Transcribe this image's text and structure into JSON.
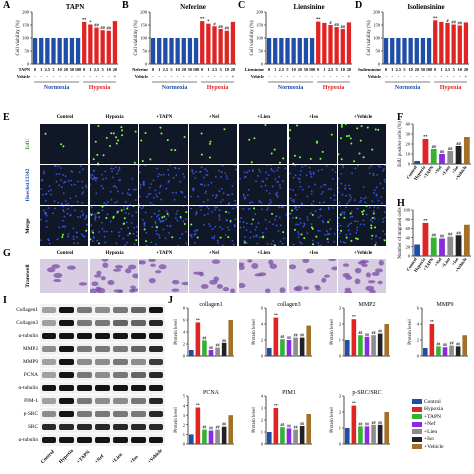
{
  "panels": {
    "A": "A",
    "B": "B",
    "C": "C",
    "D": "D",
    "E": "E",
    "F": "F",
    "G": "G",
    "H": "H",
    "I": "I",
    "J": "J"
  },
  "colors": {
    "normoxia_bar": "#1f4ea8",
    "hypoxia_bar": "#e02424",
    "control": "#1f4ea8",
    "hypoxia": "#e02424",
    "tapn": "#34b233",
    "nef": "#8a2be2",
    "lien": "#8c8c8c",
    "iso": "#222222",
    "vehicle": "#a3702a",
    "normoxia_text": "#1f4ea8",
    "hypoxia_text": "#e02424",
    "edu_dot": "#7cff3a",
    "hoechst_dot": "#3c5cff"
  },
  "top_charts": {
    "ylabel": "Cell viability (%)",
    "ylim": [
      0,
      200
    ],
    "yticks": [
      "0",
      "50",
      "100",
      "150",
      "200"
    ],
    "normoxia_label": "Normoxia",
    "hypoxia_label": "Hypoxia",
    "vehicle_label": "Vehicle",
    "charts": [
      {
        "id": "A",
        "title": "TAPN",
        "drug_label": "TAPN",
        "conc": [
          "0",
          "1",
          "2.5",
          "5",
          "10",
          "20",
          "50",
          "100",
          "0",
          "1",
          "2.5",
          "5",
          "10",
          "20"
        ],
        "values": [
          100,
          100,
          100,
          100,
          100,
          100,
          100,
          100,
          162,
          152,
          140,
          130,
          128,
          165
        ],
        "sig": [
          "",
          "",
          "",
          "",
          "",
          "",
          "",
          "",
          "**",
          "*",
          "##",
          "##",
          "##",
          ""
        ]
      },
      {
        "id": "B",
        "title": "Neferine",
        "drug_label": "Neferine",
        "conc": [
          "0",
          "1",
          "2.5",
          "5",
          "10",
          "20",
          "50",
          "100",
          "0",
          "1",
          "2.5",
          "5",
          "10",
          "20"
        ],
        "values": [
          100,
          100,
          100,
          100,
          100,
          100,
          100,
          100,
          165,
          155,
          145,
          135,
          128,
          162
        ],
        "sig": [
          "",
          "",
          "",
          "",
          "",
          "",
          "",
          "",
          "**",
          "*",
          "#",
          "##",
          "##",
          ""
        ]
      },
      {
        "id": "C",
        "title": "Liensinine",
        "drug_label": "Liensinine",
        "conc": [
          "0",
          "1",
          "2.5",
          "5",
          "10",
          "20",
          "50",
          "100",
          "0",
          "1",
          "2.5",
          "5",
          "10",
          "20"
        ],
        "values": [
          100,
          100,
          100,
          100,
          100,
          100,
          100,
          100,
          163,
          158,
          150,
          142,
          135,
          160
        ],
        "sig": [
          "",
          "",
          "",
          "",
          "",
          "",
          "",
          "",
          "**",
          "",
          "#",
          "##",
          "##",
          ""
        ]
      },
      {
        "id": "D",
        "title": "Isoliensinine",
        "drug_label": "Isoliensinine",
        "conc": [
          "0",
          "1",
          "2.5",
          "5",
          "10",
          "20",
          "50",
          "100",
          "0",
          "1",
          "2.5",
          "5",
          "10",
          "20"
        ],
        "values": [
          100,
          100,
          100,
          100,
          100,
          100,
          100,
          100,
          168,
          162,
          158,
          152,
          148,
          160
        ],
        "sig": [
          "",
          "",
          "",
          "",
          "",
          "",
          "",
          "",
          "**",
          "",
          "#",
          "##",
          "##",
          ""
        ]
      }
    ]
  },
  "edu_panel": {
    "conditions": [
      "Control",
      "Hypoxia",
      "+TAPN",
      "+Nef",
      "+Lien",
      "+Iso",
      "+Vehicle"
    ],
    "rows": [
      "EdU",
      "Hoechst33342",
      "Merge"
    ]
  },
  "transwell_panel": {
    "row": "Transwell",
    "conditions": [
      "Control",
      "Hypoxia",
      "+TAPN",
      "+Nef",
      "+Lien",
      "+Iso",
      "+Vehicle"
    ]
  },
  "chart_data": [
    {
      "type": "bar",
      "panel": "F",
      "ylabel": "EdU positive cells (%)",
      "ylim": [
        0,
        40
      ],
      "yticks": [
        "0",
        "10",
        "20",
        "30",
        "40"
      ],
      "categories": [
        "Control",
        "Hypoxia",
        "+TAPN",
        "+Nef",
        "+Lien",
        "+Iso",
        "+Vehicle"
      ],
      "values": [
        3,
        25,
        15,
        10,
        13,
        18,
        27
      ],
      "sig": [
        "",
        "**",
        "##",
        "##",
        "##",
        "##",
        ""
      ]
    },
    {
      "type": "bar",
      "panel": "H",
      "ylabel": "Number of migrated cells",
      "ylim": [
        0,
        100
      ],
      "yticks": [
        "0",
        "20",
        "40",
        "60",
        "80",
        "100"
      ],
      "categories": [
        "Control",
        "Hypoxia",
        "+TAPN",
        "+Nef",
        "+Lien",
        "+Iso",
        "+Vehicle"
      ],
      "values": [
        25,
        72,
        40,
        38,
        42,
        45,
        68
      ],
      "sig": [
        "",
        "**",
        "##",
        "##",
        "##",
        "##",
        ""
      ]
    },
    {
      "type": "bar",
      "panel": "J-collagen1",
      "title": "collagen1",
      "ylabel": "Protein level",
      "ylim": [
        0,
        8
      ],
      "yticks": [
        "0",
        "2",
        "4",
        "6",
        "8"
      ],
      "categories": [
        "Control",
        "Hypoxia",
        "+TAPN",
        "+Nef",
        "+Lien",
        "+Iso",
        "+Vehicle"
      ],
      "values": [
        1.0,
        5.6,
        2.6,
        1.0,
        1.4,
        2.2,
        6.0
      ],
      "sig": [
        "",
        "**",
        "##",
        "##",
        "##",
        "##",
        ""
      ]
    },
    {
      "type": "bar",
      "panel": "J-collagen3",
      "title": "collagen3",
      "ylabel": "Protein level",
      "ylim": [
        0,
        6
      ],
      "yticks": [
        "0",
        "2",
        "4",
        "6"
      ],
      "categories": [
        "Control",
        "Hypoxia",
        "+TAPN",
        "+Nef",
        "+Lien",
        "+Iso",
        "+Vehicle"
      ],
      "values": [
        1.0,
        4.8,
        2.1,
        2.0,
        2.3,
        2.3,
        3.8
      ],
      "sig": [
        "",
        "**",
        "##",
        "##",
        "##",
        "##",
        ""
      ]
    },
    {
      "type": "bar",
      "panel": "J-MMP2",
      "title": "MMP2",
      "ylabel": "Protein level",
      "ylim": [
        0,
        3
      ],
      "yticks": [
        "0",
        "1",
        "2",
        "3"
      ],
      "categories": [
        "Control",
        "Hypoxia",
        "+TAPN",
        "+Nef",
        "+Lien",
        "+Iso",
        "+Vehicle"
      ],
      "values": [
        1.0,
        2.3,
        1.3,
        1.2,
        1.3,
        1.4,
        2.0
      ],
      "sig": [
        "",
        "**",
        "##",
        "##",
        "##",
        "##",
        ""
      ]
    },
    {
      "type": "bar",
      "panel": "J-MMP9",
      "title": "MMP9",
      "ylabel": "Protein level",
      "ylim": [
        0,
        6
      ],
      "yticks": [
        "0",
        "2",
        "4",
        "6"
      ],
      "categories": [
        "Control",
        "Hypoxia",
        "+TAPN",
        "+Nef",
        "+Lien",
        "+Iso",
        "+Vehicle"
      ],
      "values": [
        1.0,
        4.0,
        1.2,
        1.1,
        1.3,
        1.2,
        2.6
      ],
      "sig": [
        "",
        "**",
        "##",
        "##",
        "##",
        "##",
        ""
      ]
    },
    {
      "type": "bar",
      "panel": "J-PCNA",
      "title": "PCNA",
      "ylabel": "Protein level",
      "ylim": [
        0,
        5
      ],
      "yticks": [
        "0",
        "1",
        "2",
        "3",
        "4",
        "5"
      ],
      "categories": [
        "Control",
        "Hypoxia",
        "+TAPN",
        "+Nef",
        "+Lien",
        "+Iso",
        "+Vehicle"
      ],
      "values": [
        1.0,
        3.8,
        1.5,
        1.4,
        1.5,
        1.8,
        3.0
      ],
      "sig": [
        "",
        "**",
        "##",
        "##",
        "##",
        "##",
        ""
      ]
    },
    {
      "type": "bar",
      "panel": "J-PIM1",
      "title": "PIM1",
      "ylabel": "Protein level",
      "ylim": [
        0,
        4
      ],
      "yticks": [
        "0",
        "1",
        "2",
        "3",
        "4"
      ],
      "categories": [
        "Control",
        "Hypoxia",
        "+TAPN",
        "+Nef",
        "+Lien",
        "+Iso",
        "+Vehicle"
      ],
      "values": [
        1.0,
        3.0,
        1.4,
        1.3,
        1.2,
        1.5,
        2.5
      ],
      "sig": [
        "",
        "**",
        "##",
        "##",
        "##",
        "##",
        ""
      ]
    },
    {
      "type": "bar",
      "panel": "J-pSRC",
      "title": "p-SRC/SRC",
      "ylabel": "Protein level",
      "ylim": [
        0,
        3
      ],
      "yticks": [
        "0",
        "1",
        "2",
        "3"
      ],
      "categories": [
        "Control",
        "Hypoxia",
        "+TAPN",
        "+Nef",
        "+Lien",
        "+Iso",
        "+Vehicle"
      ],
      "values": [
        1.0,
        2.4,
        1.1,
        1.1,
        1.2,
        1.2,
        2.0
      ],
      "sig": [
        "",
        "**",
        "##",
        "##",
        "##",
        "##",
        ""
      ]
    }
  ],
  "blot": {
    "proteins": [
      "Collagen1",
      "Collagen3",
      "α-tubulin",
      "MMP2",
      "MMP9",
      "PCNA",
      "α-tubulin",
      "PIM-1",
      "p-SRC",
      "SRC",
      "α-tubulin"
    ],
    "lanes": [
      "Control",
      "Hypoxia",
      "+TAPN",
      "+Nef",
      "+Lien",
      "+Iso",
      "+Vehicle"
    ]
  },
  "legend": {
    "entries": [
      "Control",
      "Hypoxia",
      "+TAPN",
      "+Nef",
      "+Lien",
      "+Iso",
      "+Vehicle"
    ]
  }
}
